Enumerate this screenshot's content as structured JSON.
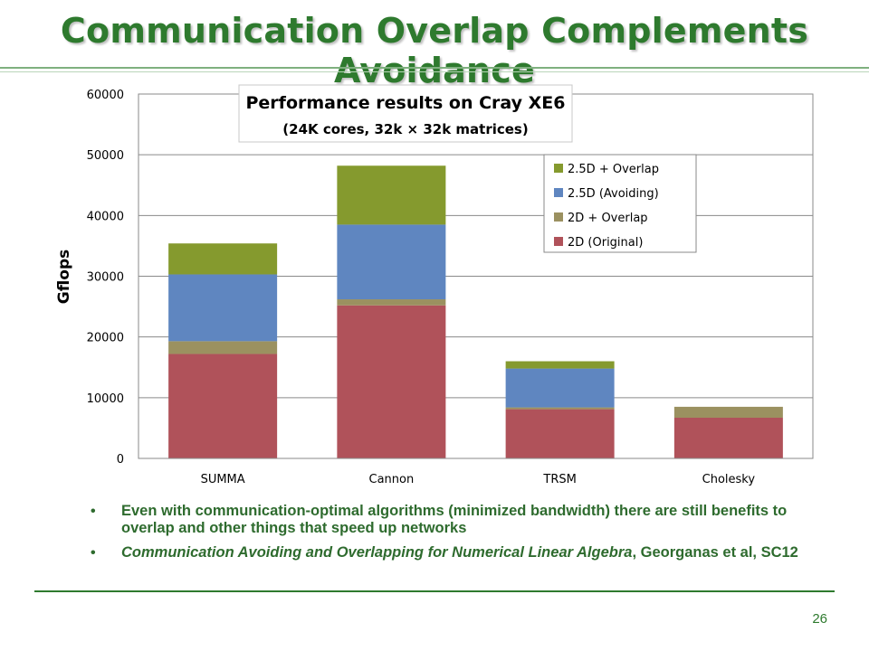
{
  "slide": {
    "title": "Communication Overlap Complements Avoidance",
    "page_number": "26",
    "bullets": [
      {
        "text": "Even with communication-optimal algorithms (minimized bandwidth) there are still benefits to overlap and other things that speed up networks"
      },
      {
        "italic": "Communication Avoiding and Overlapping for Numerical Linear Algebra",
        "text": ", Georganas et al, SC12"
      }
    ]
  },
  "colors": {
    "title": "#2e7a2e",
    "2d_original": "#b0525a",
    "2d_overlap": "#9b9160",
    "25d_avoiding": "#5f86c0",
    "25d_overlap": "#859a2e"
  },
  "chart_data": {
    "type": "bar",
    "stacked": true,
    "title": "Performance results on Cray XE6",
    "subtitle": "(24K cores, 32k × 32k matrices)",
    "xlabel": "",
    "ylabel": "Gflops",
    "ylim": [
      0,
      60000
    ],
    "yticks": [
      0,
      10000,
      20000,
      30000,
      40000,
      50000,
      60000
    ],
    "grid": true,
    "legend_position": "right",
    "categories": [
      "SUMMA",
      "Cannon",
      "TRSM",
      "Cholesky"
    ],
    "series": [
      {
        "name": "2D (Original)",
        "color": "#b0525a",
        "values": [
          17200,
          25200,
          8100,
          6700
        ]
      },
      {
        "name": "2D + Overlap",
        "color": "#9b9160",
        "values": [
          2100,
          1000,
          300,
          1800
        ]
      },
      {
        "name": "2.5D (Avoiding)",
        "color": "#5f86c0",
        "values": [
          11000,
          12300,
          6400,
          0
        ]
      },
      {
        "name": "2.5D + Overlap",
        "color": "#859a2e",
        "values": [
          5100,
          9700,
          1200,
          0
        ]
      }
    ]
  }
}
